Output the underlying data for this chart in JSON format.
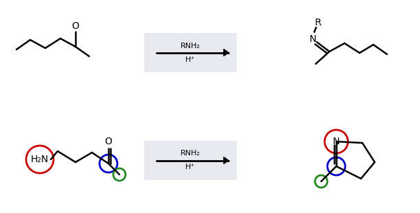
{
  "bg_color": "#ffffff",
  "arrow_box_color": "#e8eaf0",
  "red_circle_color": "#cc0000",
  "blue_circle_color": "#0000cc",
  "green_circle_color": "#228822",
  "line_width": 1.8,
  "circle_lw": 2.0,
  "rxn1": {
    "label_top": "RNH₂",
    "label_bottom": "H⁺"
  },
  "rxn2": {
    "label_top": "RNH₂",
    "label_bottom": "H⁺"
  }
}
